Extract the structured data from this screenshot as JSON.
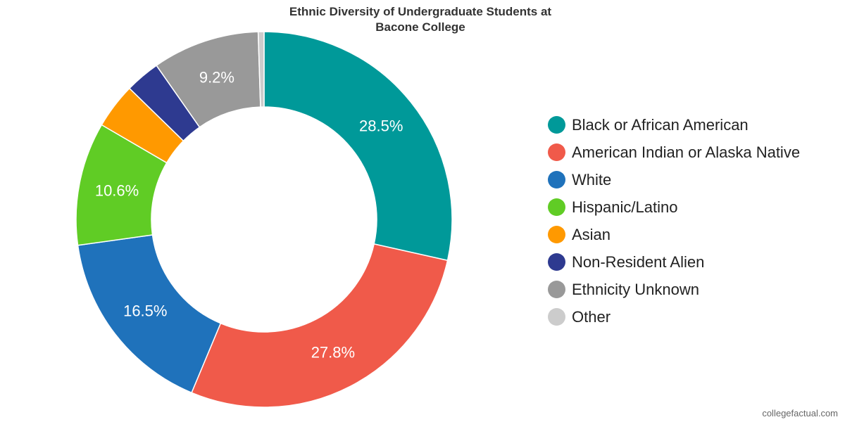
{
  "chart_data": {
    "type": "pie",
    "donut": true,
    "title_lines": [
      "Ethnic Diversity of Undergraduate Students at",
      "Bacone College"
    ],
    "slices": [
      {
        "name": "Black or African American",
        "value": 28.5,
        "label": "28.5%",
        "color": "#009999"
      },
      {
        "name": "American Indian or Alaska Native",
        "value": 27.8,
        "label": "27.8%",
        "color": "#F05A4A"
      },
      {
        "name": "White",
        "value": 16.5,
        "label": "16.5%",
        "color": "#1F72BB"
      },
      {
        "name": "Hispanic/Latino",
        "value": 10.6,
        "label": "10.6%",
        "color": "#60CC25"
      },
      {
        "name": "Asian",
        "value": 3.9,
        "label": "",
        "color": "#FF9900"
      },
      {
        "name": "Non-Resident Alien",
        "value": 3.0,
        "label": "",
        "color": "#2E3A90"
      },
      {
        "name": "Ethnicity Unknown",
        "value": 9.2,
        "label": "9.2%",
        "color": "#999999"
      },
      {
        "name": "Other",
        "value": 0.5,
        "label": "",
        "color": "#CCCCCC"
      }
    ],
    "legend_position": "right"
  },
  "source_text": "collegefactual.com"
}
